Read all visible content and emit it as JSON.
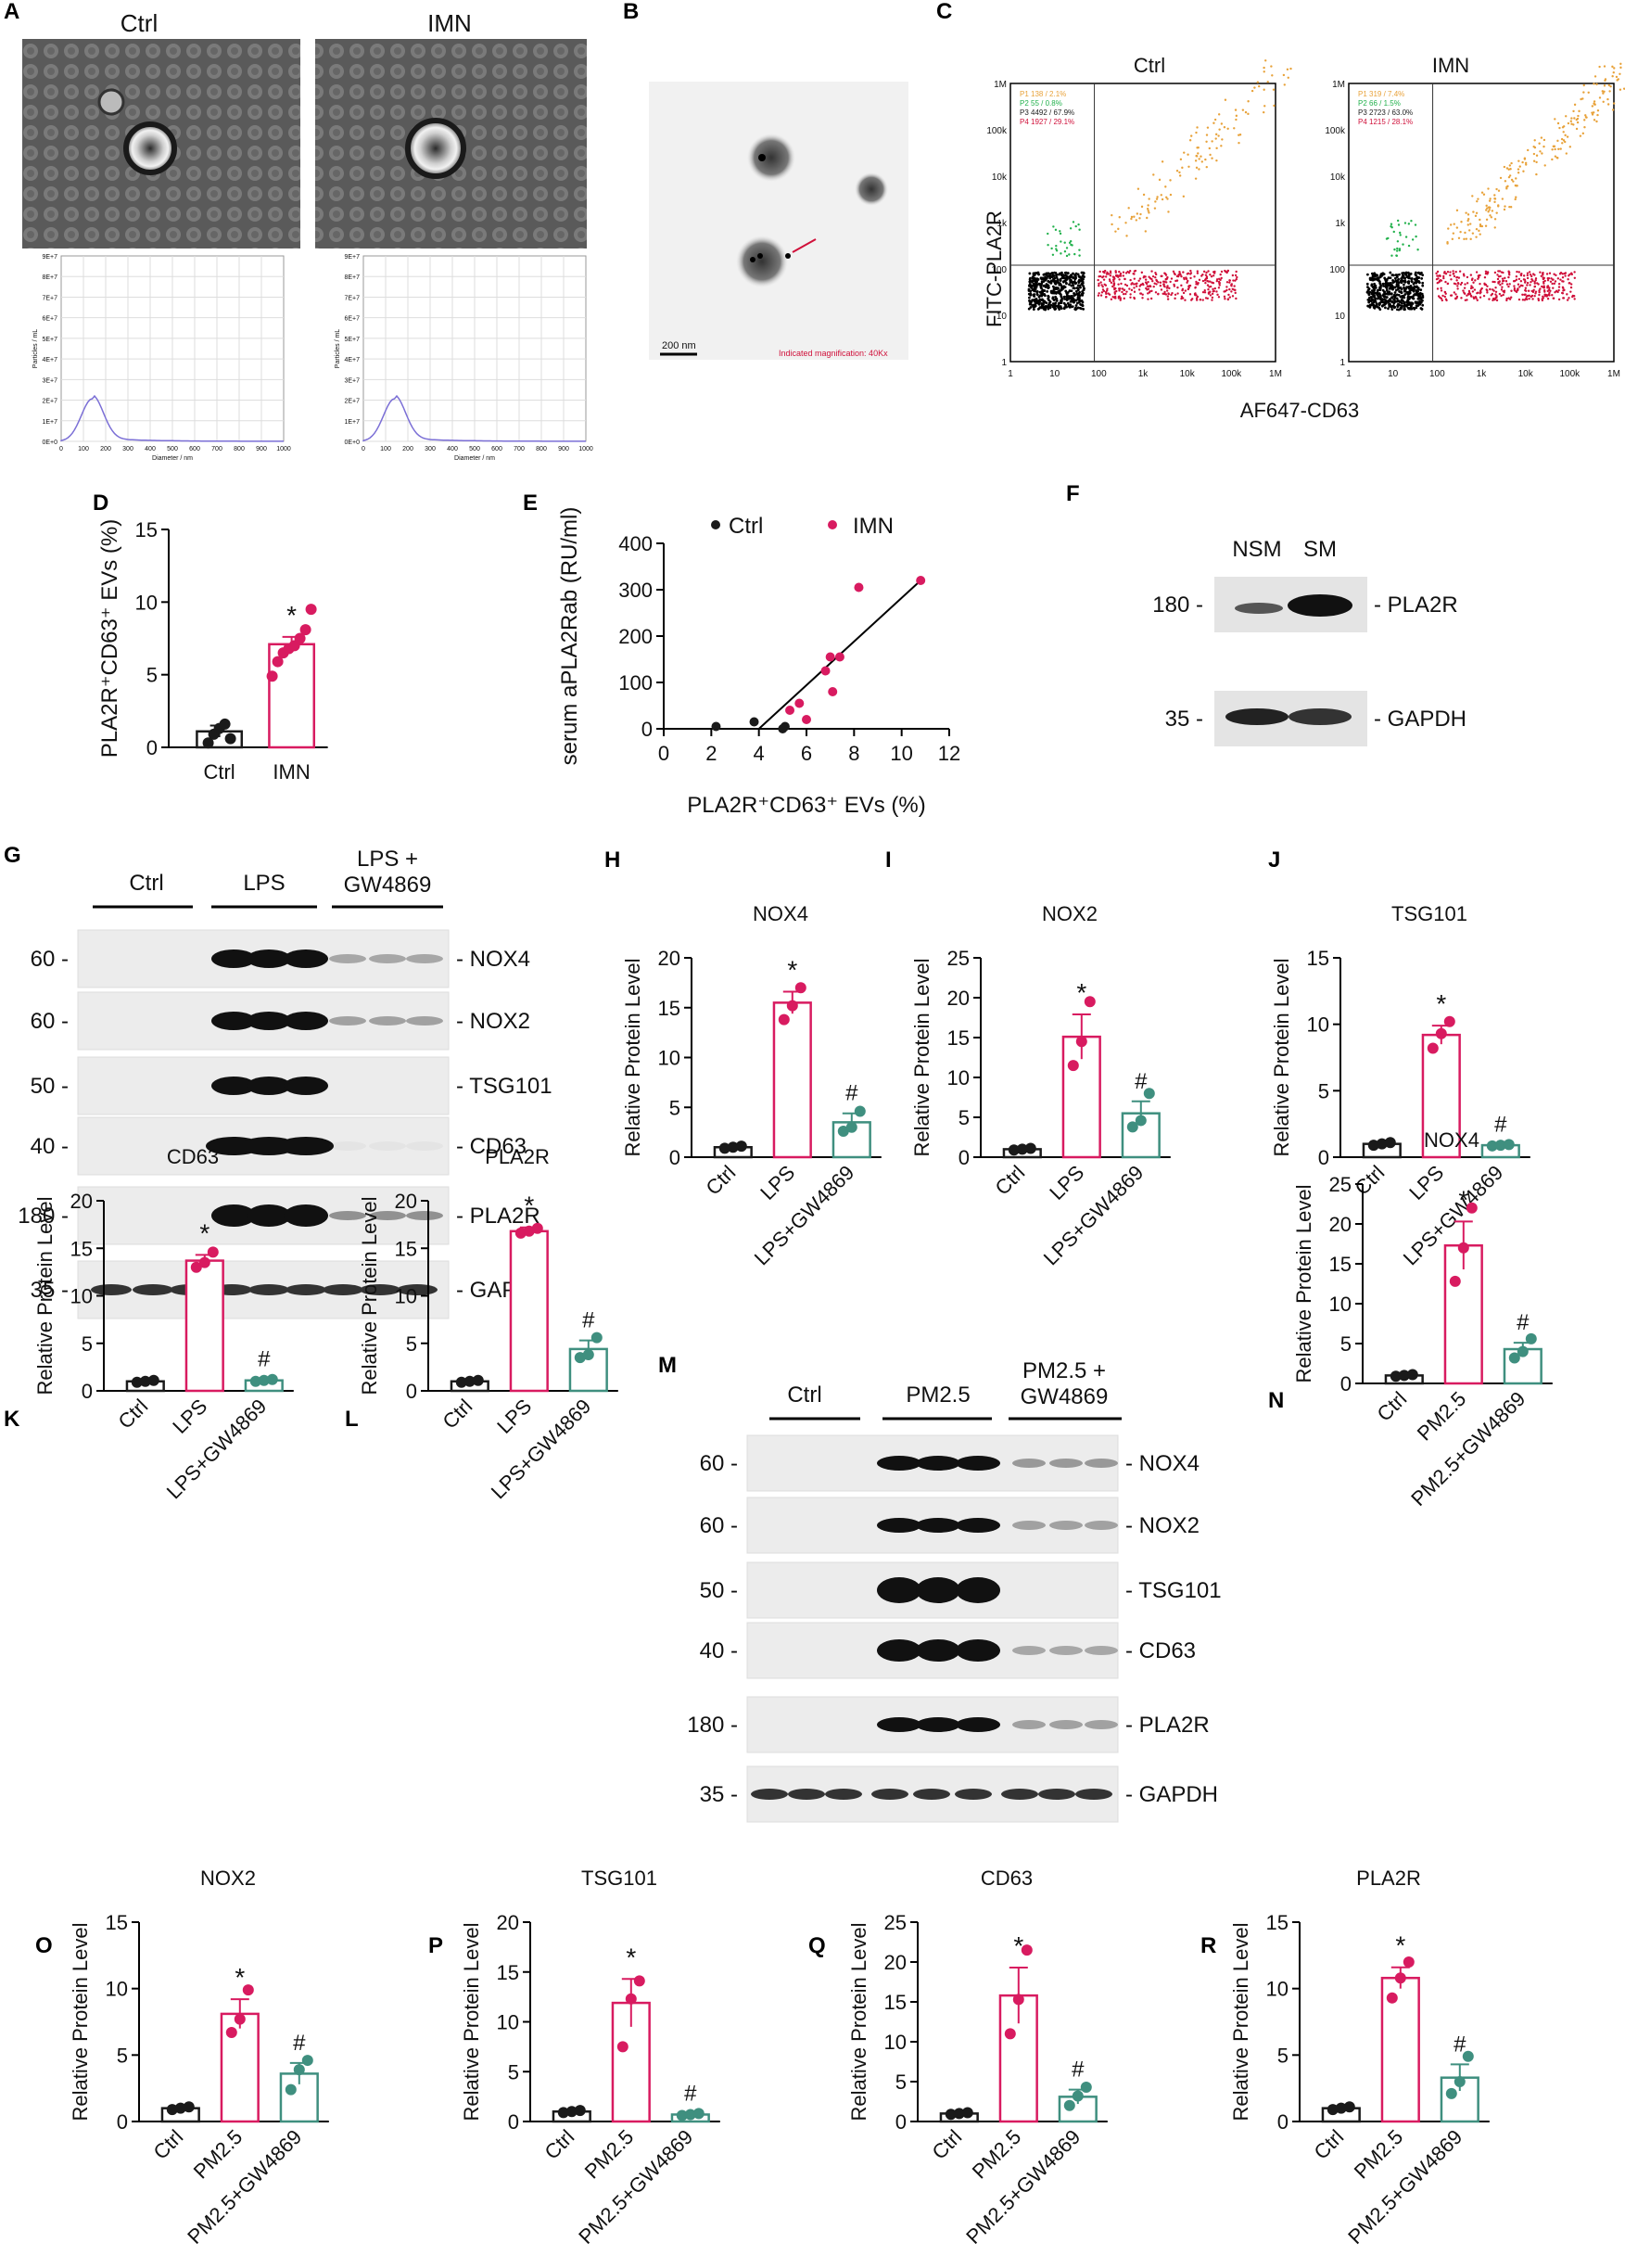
{
  "colors": {
    "ctrl": "#1a1a1a",
    "lps": "#d81b60",
    "gw": "#3f8f7f",
    "purple": "#7b6fd6",
    "orange": "#e8a23a",
    "green": "#22b14c",
    "red": "#d0103a"
  },
  "panel_A": {
    "letter": "A",
    "ctrl_label": "Ctrl",
    "imn_label": "IMN",
    "nta_yticks": [
      "9E+7",
      "8E+7",
      "7E+7",
      "6E+7",
      "5E+7",
      "4E+7",
      "3E+7",
      "2E+7",
      "1E+7",
      "0E+0"
    ],
    "nta_xticks": [
      "0",
      "100",
      "200",
      "300",
      "400",
      "500",
      "600",
      "700",
      "800",
      "900",
      "1000"
    ],
    "nta_xlabel": "Diameter / nm",
    "nta_ylabel": "Particles / mL"
  },
  "panel_B": {
    "letter": "B",
    "scale": "200 nm",
    "mag": "Indicated magnification: 40Kx"
  },
  "panel_C": {
    "letter": "C",
    "ctrl_label": "Ctrl",
    "imn_label": "IMN",
    "ylabel": "FITC-PLA2R",
    "xlabel": "AF647-CD63",
    "ticks": [
      "1",
      "10",
      "100",
      "1k",
      "10k",
      "100k",
      "1M"
    ],
    "ctrl_gates": [
      "P1  138 / 2.1%",
      "P2  55 / 0.8%",
      "P3  4492 / 67.9%",
      "P4  1927 / 29.1%"
    ],
    "imn_gates": [
      "P1  319 / 7.4%",
      "P2  66 / 1.5%",
      "P3  2723 / 63.0%",
      "P4  1215 / 28.1%"
    ]
  },
  "panel_D": {
    "letter": "D",
    "ylabel": "PLA2R⁺CD63⁺ EVs (%)",
    "star": "*"
  },
  "panel_E": {
    "letter": "E",
    "ylabel": "serum aPLA2Rab (RU/ml)",
    "xlabel": "PLA2R⁺CD63⁺ EVs (%)",
    "legend_ctrl": "Ctrl",
    "legend_imn": "IMN"
  },
  "panel_F": {
    "letter": "F",
    "lanes": [
      "NSM",
      "SM"
    ],
    "mw": [
      "180 -",
      "35 -"
    ],
    "bands": [
      "- PLA2R",
      "- GAPDH"
    ]
  },
  "panel_G": {
    "letter": "G",
    "groups": [
      "Ctrl",
      "LPS",
      "LPS +",
      "GW4869"
    ],
    "mw": [
      "60 -",
      "60 -",
      "50 -",
      "40 -",
      "180 -",
      "35 -"
    ],
    "bands": [
      "- NOX4",
      "- NOX2",
      "- TSG101",
      "- CD63",
      "- PLA2R",
      "- GAPDH"
    ]
  },
  "panel_M": {
    "letter": "M",
    "groups": [
      "Ctrl",
      "PM2.5",
      "PM2.5 +",
      "GW4869"
    ],
    "mw": [
      "60 -",
      "60 -",
      "50 -",
      "40 -",
      "180 -",
      "35 -"
    ],
    "bands": [
      "- NOX4",
      "- NOX2",
      "- TSG101",
      "- CD63",
      "- PLA2R",
      "- GAPDH"
    ]
  },
  "common": {
    "ylabel": "Relative Protein Level",
    "star": "*",
    "hash": "#"
  },
  "chart_data": [
    {
      "id": "D",
      "type": "bar",
      "title": "",
      "categories": [
        "Ctrl",
        "IMN"
      ],
      "values": [
        1.1,
        7.1
      ],
      "errors": [
        0.4,
        0.5
      ],
      "points": [
        [
          0.3,
          0.9,
          1.3,
          1.6,
          0.6
        ],
        [
          4.9,
          5.9,
          6.5,
          6.8,
          7.0,
          7.5,
          8.1,
          9.5
        ]
      ],
      "ylabel": "PLA2R⁺CD63⁺ EVs (%)",
      "ylim": [
        0,
        15
      ],
      "yticks": [
        0,
        5,
        10,
        15
      ]
    },
    {
      "id": "E",
      "type": "scatter",
      "title": "",
      "ctrl_points": [
        [
          2.2,
          5
        ],
        [
          3.8,
          15
        ],
        [
          5.0,
          0
        ],
        [
          5.1,
          5
        ]
      ],
      "imn_points": [
        [
          5.3,
          40
        ],
        [
          5.7,
          55
        ],
        [
          6.0,
          20
        ],
        [
          6.8,
          125
        ],
        [
          7.0,
          155
        ],
        [
          7.1,
          80
        ],
        [
          7.4,
          155
        ],
        [
          8.2,
          305
        ],
        [
          10.8,
          320
        ]
      ],
      "fit_line": [
        [
          4.0,
          0
        ],
        [
          10.8,
          320
        ]
      ],
      "xlabel": "PLA2R⁺CD63⁺ EVs (%)",
      "ylabel": "serum aPLA2Rab (RU/ml)",
      "xlim": [
        0,
        12
      ],
      "ylim": [
        0,
        400
      ],
      "xticks": [
        0,
        2,
        4,
        6,
        8,
        10,
        12
      ],
      "yticks": [
        0,
        100,
        200,
        300,
        400
      ]
    },
    {
      "id": "H",
      "type": "bar",
      "title": "NOX4",
      "categories": [
        "Ctrl",
        "LPS",
        "LPS+GW4869"
      ],
      "values": [
        1.0,
        15.5,
        3.5
      ],
      "errors": [
        0.1,
        1.1,
        0.9
      ],
      "points": [
        [
          0.9,
          1.0,
          1.1
        ],
        [
          13.8,
          15.2,
          17.0
        ],
        [
          2.6,
          3.0,
          4.6
        ]
      ],
      "ylim": [
        0,
        20
      ],
      "yticks": [
        0,
        5,
        10,
        15,
        20
      ]
    },
    {
      "id": "I",
      "type": "bar",
      "title": "NOX2",
      "categories": [
        "Ctrl",
        "LPS",
        "LPS+GW4869"
      ],
      "values": [
        1.0,
        15.1,
        5.5
      ],
      "errors": [
        0.1,
        2.8,
        1.5
      ],
      "points": [
        [
          0.9,
          1.0,
          1.1
        ],
        [
          11.5,
          14.5,
          19.5
        ],
        [
          3.8,
          4.6,
          8.0
        ]
      ],
      "ylim": [
        0,
        25
      ],
      "yticks": [
        0,
        5,
        10,
        15,
        20,
        25
      ]
    },
    {
      "id": "J",
      "type": "bar",
      "title": "TSG101",
      "categories": [
        "Ctrl",
        "LPS",
        "LPS+GW4869"
      ],
      "values": [
        1.0,
        9.2,
        0.9
      ],
      "errors": [
        0.1,
        0.7,
        0.05
      ],
      "points": [
        [
          0.9,
          1.0,
          1.1
        ],
        [
          8.2,
          9.3,
          10.2
        ],
        [
          0.85,
          0.9,
          0.95
        ]
      ],
      "ylim": [
        0,
        15
      ],
      "yticks": [
        0,
        5,
        10,
        15
      ]
    },
    {
      "id": "K",
      "type": "bar",
      "title": "CD63",
      "categories": [
        "Ctrl",
        "LPS",
        "LPS+GW4869"
      ],
      "values": [
        1.0,
        13.7,
        1.1
      ],
      "errors": [
        0.1,
        0.6,
        0.1
      ],
      "points": [
        [
          0.9,
          1.0,
          1.1
        ],
        [
          13.0,
          13.5,
          14.6
        ],
        [
          1.0,
          1.1,
          1.2
        ]
      ],
      "ylim": [
        0,
        20
      ],
      "yticks": [
        0,
        5,
        10,
        15,
        20
      ]
    },
    {
      "id": "L",
      "type": "bar",
      "title": "PLA2R",
      "categories": [
        "Ctrl",
        "LPS",
        "LPS+GW4869"
      ],
      "values": [
        1.0,
        16.8,
        4.4
      ],
      "errors": [
        0.1,
        0.4,
        0.9
      ],
      "points": [
        [
          0.9,
          1.0,
          1.1
        ],
        [
          16.6,
          16.8,
          17.1
        ],
        [
          3.5,
          3.8,
          5.6
        ]
      ],
      "ylim": [
        0,
        20
      ],
      "yticks": [
        0,
        5,
        10,
        15,
        20
      ]
    },
    {
      "id": "N",
      "type": "bar",
      "title": "NOX4",
      "categories": [
        "Ctrl",
        "PM2.5",
        "PM2.5+GW4869"
      ],
      "values": [
        1.0,
        17.3,
        4.3
      ],
      "errors": [
        0.1,
        3.0,
        0.8
      ],
      "points": [
        [
          0.9,
          1.0,
          1.1
        ],
        [
          12.8,
          17.0,
          22.0
        ],
        [
          3.2,
          4.0,
          5.6
        ]
      ],
      "ylim": [
        0,
        25
      ],
      "yticks": [
        0,
        5,
        10,
        15,
        20,
        25
      ]
    },
    {
      "id": "O",
      "type": "bar",
      "title": "NOX2",
      "categories": [
        "Ctrl",
        "PM2.5",
        "PM2.5+GW4869"
      ],
      "values": [
        1.0,
        8.1,
        3.6
      ],
      "errors": [
        0.1,
        1.1,
        0.8
      ],
      "points": [
        [
          0.9,
          1.0,
          1.1
        ],
        [
          6.7,
          7.7,
          9.9
        ],
        [
          2.4,
          3.9,
          4.6
        ]
      ],
      "ylim": [
        0,
        15
      ],
      "yticks": [
        0,
        5,
        10,
        15
      ]
    },
    {
      "id": "P",
      "type": "bar",
      "title": "TSG101",
      "categories": [
        "Ctrl",
        "PM2.5",
        "PM2.5+GW4869"
      ],
      "values": [
        1.0,
        11.9,
        0.7
      ],
      "errors": [
        0.1,
        2.4,
        0.1
      ],
      "points": [
        [
          0.9,
          1.0,
          1.1
        ],
        [
          7.5,
          12.3,
          14.1
        ],
        [
          0.6,
          0.7,
          0.8
        ]
      ],
      "ylim": [
        0,
        20
      ],
      "yticks": [
        0,
        5,
        10,
        15,
        20
      ]
    },
    {
      "id": "Q",
      "type": "bar",
      "title": "CD63",
      "categories": [
        "Ctrl",
        "PM2.5",
        "PM2.5+GW4869"
      ],
      "values": [
        1.0,
        15.8,
        3.1
      ],
      "errors": [
        0.1,
        3.5,
        0.9
      ],
      "points": [
        [
          0.9,
          1.0,
          1.1
        ],
        [
          11.0,
          15.3,
          21.5
        ],
        [
          2.0,
          3.2,
          4.3
        ]
      ],
      "ylim": [
        0,
        25
      ],
      "yticks": [
        0,
        5,
        10,
        15,
        20,
        25
      ]
    },
    {
      "id": "R",
      "type": "bar",
      "title": "PLA2R",
      "categories": [
        "Ctrl",
        "PM2.5",
        "PM2.5+GW4869"
      ],
      "values": [
        1.0,
        10.8,
        3.3
      ],
      "errors": [
        0.1,
        0.8,
        1.0
      ],
      "points": [
        [
          0.9,
          1.0,
          1.1
        ],
        [
          9.3,
          10.8,
          12.0
        ],
        [
          2.1,
          3.0,
          4.9
        ]
      ],
      "ylim": [
        0,
        15
      ],
      "yticks": [
        0,
        5,
        10,
        15
      ]
    }
  ]
}
